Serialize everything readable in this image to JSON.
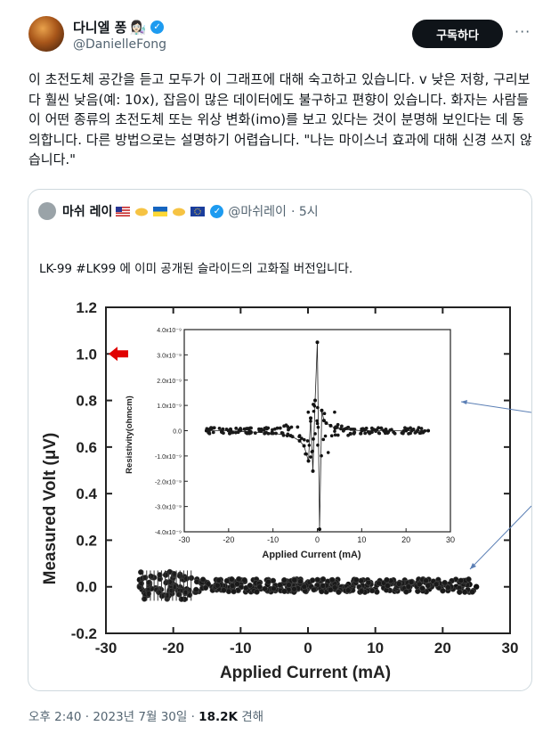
{
  "author": {
    "display_name": "다니엘 퐁",
    "emoji": "👩🏻‍🔬",
    "handle": "@DanielleFong",
    "subscribe_label": "구독하다",
    "more_label": "···"
  },
  "tweet": {
    "text": "이 초전도체 공간을 듣고 모두가 이 그래프에 대해 숙고하고 있습니다. v 낮은 저항, 구리보다 훨씬 낮음(예: 10x), 잡음이 많은 데이터에도 불구하고 편향이 있습니다. 화자는 사람들이 어떤 종류의 초전도체 또는 위상 변화(imo)를 보고 있다는 것이 분명해 보인다는 데 동의합니다. 다른 방법으로는 설명하기 어렵습니다. \"나는 마이스너 효과에 대해 신경 쓰지 않습니다.\""
  },
  "quoted": {
    "display_name": "마쉬 레이",
    "handle": "@마쉬레이",
    "time": "· 5시",
    "text": "LK-99 #LK99 에 이미 공개된 슬라이드의 고화질 버전입니다."
  },
  "footer": {
    "time": "오후 2:40 · 2023년 7월 30일 · ",
    "views": "18.2K",
    "views_label": " 견해"
  },
  "chart_data": [
    {
      "type": "scatter",
      "xlabel": "Applied Current (mA)",
      "ylabel": "Measured Volt (μV)",
      "xlim": [
        -30,
        30
      ],
      "ylim": [
        -0.2,
        1.2
      ],
      "xticks": [
        "-30",
        "-20",
        "-10",
        "0",
        "10",
        "20",
        "30"
      ],
      "yticks": [
        "-0.2",
        "0.0",
        "0.2",
        "0.4",
        "0.6",
        "0.8",
        "1.0",
        "1.2"
      ],
      "annotation": "arrow at 1.0",
      "series": [
        {
          "x": [
            -25,
            -24,
            -23,
            -22,
            -21,
            -20,
            -18,
            -16,
            -14,
            -12,
            -10,
            -8,
            -6,
            -4,
            -2,
            0,
            2,
            4,
            6,
            8,
            10,
            12,
            14,
            16,
            18,
            20,
            22,
            24,
            25
          ],
          "y": [
            0.03,
            -0.02,
            0.04,
            -0.01,
            0.02,
            0.01,
            -0.01,
            0.02,
            0.0,
            -0.01,
            0.01,
            0.0,
            0.01,
            -0.01,
            0.03,
            0.02,
            0.0,
            -0.01,
            0.01,
            0.0,
            -0.01,
            0.01,
            0.0,
            0.01,
            -0.01,
            0.01,
            0.0,
            0.01,
            0.0
          ]
        }
      ]
    },
    {
      "type": "scatter",
      "xlabel": "Applied Current (mA)",
      "ylabel": "Resistivity(ohmcm)",
      "xlim": [
        -30,
        30
      ],
      "ylim": [
        -4e-09,
        4e-09
      ],
      "xticks": [
        "-30",
        "-20",
        "-10",
        "0",
        "10",
        "20",
        "30"
      ],
      "yticks": [
        "-4.0x10⁻⁹",
        "-3.0x10⁻⁹",
        "-2.0x10⁻⁹",
        "-1.0x10⁻⁹",
        "0.0",
        "1.0x10⁻⁹",
        "2.0x10⁻⁹",
        "3.0x10⁻⁹",
        "4.0x10⁻⁹"
      ],
      "series": [
        {
          "x": [
            -25,
            -20,
            -15,
            -10,
            -6,
            -4,
            -3,
            -2,
            -1.5,
            -1,
            -0.5,
            0,
            0.5,
            1,
            1.5,
            2,
            3,
            4,
            6,
            10,
            15,
            20,
            25
          ],
          "y": [
            0.0,
            0.0,
            -5e-11,
            -1e-10,
            -2e-10,
            -4e-10,
            -6e-10,
            -1.2e-09,
            5e-10,
            -1.6e-09,
            1.2e-09,
            3.5e-09,
            -3.9e-09,
            8e-10,
            4e-10,
            3e-10,
            2e-10,
            1e-10,
            5e-11,
            0.0,
            0.0,
            0.0,
            0.0
          ]
        }
      ]
    }
  ],
  "colors": {
    "accent": "#1d9bf0",
    "arrow": "#e00000",
    "axis": "#222222"
  }
}
